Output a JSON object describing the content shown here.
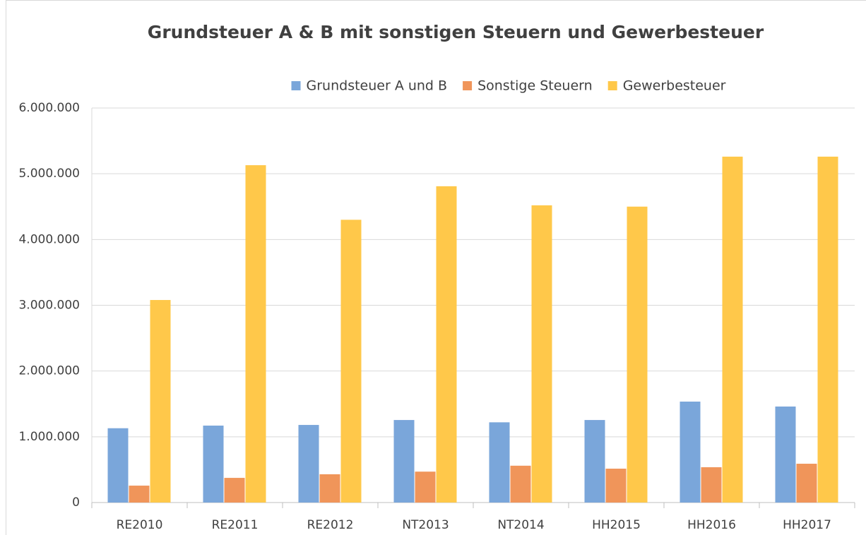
{
  "chart_data": {
    "type": "bar",
    "title": "Grundsteuer A & B mit sonstigen Steuern und Gewerbesteuer",
    "categories": [
      "RE2010",
      "RE2011",
      "RE2012",
      "NT2013",
      "NT2014",
      "HH2015",
      "HH2016",
      "HH2017"
    ],
    "series": [
      {
        "name": "Grundsteuer A und B",
        "color": "#7aa6da",
        "values": [
          1130000,
          1170000,
          1180000,
          1255000,
          1220000,
          1255000,
          1535000,
          1460000
        ]
      },
      {
        "name": "Sonstige Steuern",
        "color": "#f0955a",
        "values": [
          257000,
          375000,
          430000,
          470000,
          560000,
          515000,
          537000,
          590000
        ]
      },
      {
        "name": "Gewerbesteuer",
        "color": "#ffc84a",
        "values": [
          3080000,
          5130000,
          4300000,
          4810000,
          4520000,
          4500000,
          5260000,
          5260000
        ]
      }
    ],
    "ylim": [
      0,
      6000000
    ],
    "yticks": [
      0,
      {
        "value": 1000000,
        "label": "1.000.000"
      },
      {
        "value": 2000000,
        "label": "2.000.000"
      },
      {
        "value": 3000000,
        "label": "3.000.000"
      },
      {
        "value": 4000000,
        "label": "4.000.000"
      },
      {
        "value": 5000000,
        "label": "5.000.000"
      },
      {
        "value": 6000000,
        "label": "6.000.000"
      }
    ],
    "grid": true,
    "legend": "top"
  }
}
